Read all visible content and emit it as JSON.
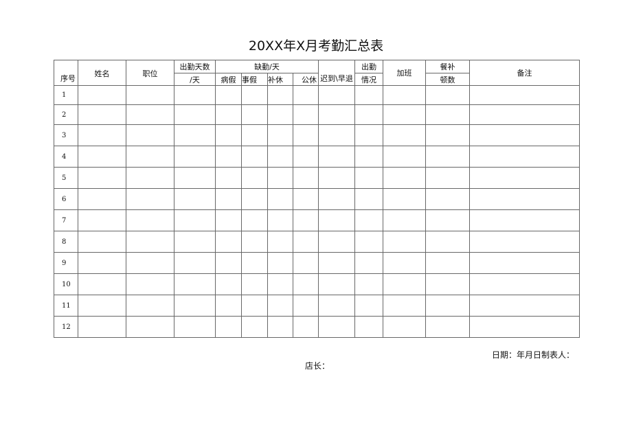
{
  "title": "20XX年X月考勤汇总表",
  "headers": {
    "seq": "序号",
    "name": "姓名",
    "position": "职位",
    "attendance_days_1": "出勤天数",
    "attendance_days_2": "/天",
    "absence": "缺勤/天",
    "sick_leave": "病假",
    "personal_leave": "事假",
    "comp_leave": "补休",
    "public_leave": "公休",
    "late_early": "迟到\\早退",
    "attendance_status_1": "出勤",
    "attendance_status_2": "情况",
    "overtime": "加班",
    "meal_1": "餐补",
    "meal_2": "顿数",
    "remarks": "备注"
  },
  "rows": [
    "1",
    "2",
    "3",
    "4",
    "5",
    "6",
    "7",
    "8",
    "9",
    "10",
    "11",
    "12"
  ],
  "footer": {
    "date_signer": "日期：年月日制表人：",
    "manager": "店长："
  }
}
